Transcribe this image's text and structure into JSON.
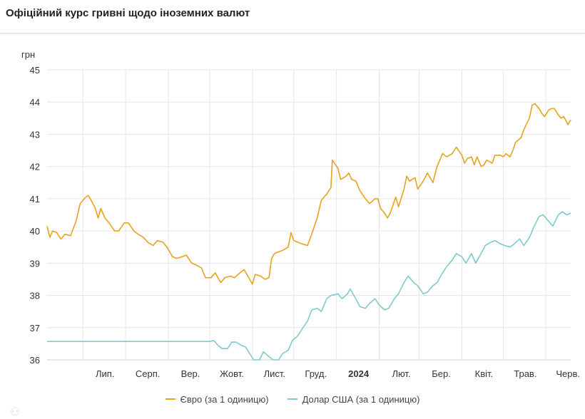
{
  "header": {
    "title": "Офіційний курс гривні щодо іноземних валют"
  },
  "colors": {
    "euro": "#E8A21E",
    "usd": "#7ECACB",
    "grid": "#E6E6E6",
    "axis": "#CCCCCC",
    "text": "#333333"
  },
  "chart_data": {
    "type": "line",
    "title": "Офіційний курс гривні щодо іноземних валют",
    "xlabel": "",
    "ylabel": "грн",
    "ylim": [
      36,
      45
    ],
    "yticks": [
      "36",
      "37",
      "38",
      "39",
      "40",
      "41",
      "42",
      "43",
      "44",
      "45"
    ],
    "xlim": [
      "2023-06-05",
      "2024-06-19"
    ],
    "xticks": [
      {
        "date": "2023-07-01",
        "label": "Лип."
      },
      {
        "date": "2023-08-01",
        "label": "Серп."
      },
      {
        "date": "2023-09-01",
        "label": "Вер."
      },
      {
        "date": "2023-10-01",
        "label": "Жовт."
      },
      {
        "date": "2023-11-01",
        "label": "Лист."
      },
      {
        "date": "2023-12-01",
        "label": "Груд."
      },
      {
        "date": "2024-01-01",
        "label": "2024",
        "bold": true
      },
      {
        "date": "2024-02-01",
        "label": "Лют."
      },
      {
        "date": "2024-03-01",
        "label": "Бер."
      },
      {
        "date": "2024-04-01",
        "label": "Квіт."
      },
      {
        "date": "2024-05-01",
        "label": "Трав."
      },
      {
        "date": "2024-06-01",
        "label": "Черв."
      }
    ],
    "grid": true,
    "legend_position": "bottom-center",
    "series": [
      {
        "name": "Євро (за 1 одиницю)",
        "color": "#E8A21E",
        "points": [
          [
            "2023-06-05",
            40.15
          ],
          [
            "2023-06-07",
            39.8
          ],
          [
            "2023-06-09",
            40.0
          ],
          [
            "2023-06-12",
            39.95
          ],
          [
            "2023-06-15",
            39.75
          ],
          [
            "2023-06-18",
            39.9
          ],
          [
            "2023-06-22",
            39.85
          ],
          [
            "2023-06-26",
            40.3
          ],
          [
            "2023-06-29",
            40.85
          ],
          [
            "2023-07-03",
            41.05
          ],
          [
            "2023-07-05",
            41.1
          ],
          [
            "2023-07-07",
            40.95
          ],
          [
            "2023-07-10",
            40.7
          ],
          [
            "2023-07-12",
            40.4
          ],
          [
            "2023-07-14",
            40.7
          ],
          [
            "2023-07-17",
            40.4
          ],
          [
            "2023-07-20",
            40.25
          ],
          [
            "2023-07-24",
            40.0
          ],
          [
            "2023-07-27",
            40.0
          ],
          [
            "2023-07-31",
            40.25
          ],
          [
            "2023-08-03",
            40.25
          ],
          [
            "2023-08-07",
            40.0
          ],
          [
            "2023-08-10",
            39.9
          ],
          [
            "2023-08-14",
            39.8
          ],
          [
            "2023-08-17",
            39.65
          ],
          [
            "2023-08-21",
            39.55
          ],
          [
            "2023-08-24",
            39.7
          ],
          [
            "2023-08-28",
            39.65
          ],
          [
            "2023-08-31",
            39.5
          ],
          [
            "2023-09-04",
            39.2
          ],
          [
            "2023-09-07",
            39.15
          ],
          [
            "2023-09-11",
            39.2
          ],
          [
            "2023-09-14",
            39.25
          ],
          [
            "2023-09-18",
            39.0
          ],
          [
            "2023-09-21",
            38.95
          ],
          [
            "2023-09-25",
            38.85
          ],
          [
            "2023-09-28",
            38.55
          ],
          [
            "2023-10-02",
            38.55
          ],
          [
            "2023-10-05",
            38.7
          ],
          [
            "2023-10-09",
            38.4
          ],
          [
            "2023-10-12",
            38.55
          ],
          [
            "2023-10-16",
            38.6
          ],
          [
            "2023-10-19",
            38.55
          ],
          [
            "2023-10-23",
            38.7
          ],
          [
            "2023-10-26",
            38.8
          ],
          [
            "2023-10-30",
            38.5
          ],
          [
            "2023-11-01",
            38.35
          ],
          [
            "2023-11-03",
            38.65
          ],
          [
            "2023-11-07",
            38.6
          ],
          [
            "2023-11-10",
            38.5
          ],
          [
            "2023-11-13",
            38.55
          ],
          [
            "2023-11-15",
            39.15
          ],
          [
            "2023-11-17",
            39.3
          ],
          [
            "2023-11-20",
            39.35
          ],
          [
            "2023-11-23",
            39.4
          ],
          [
            "2023-11-27",
            39.5
          ],
          [
            "2023-11-29",
            39.95
          ],
          [
            "2023-12-01",
            39.7
          ],
          [
            "2023-12-04",
            39.65
          ],
          [
            "2023-12-07",
            39.6
          ],
          [
            "2023-12-11",
            39.55
          ],
          [
            "2023-12-14",
            39.9
          ],
          [
            "2023-12-18",
            40.4
          ],
          [
            "2023-12-21",
            40.95
          ],
          [
            "2023-12-25",
            41.15
          ],
          [
            "2023-12-28",
            41.35
          ],
          [
            "2023-12-29",
            42.2
          ],
          [
            "2024-01-02",
            41.95
          ],
          [
            "2024-01-04",
            41.6
          ],
          [
            "2024-01-08",
            41.7
          ],
          [
            "2024-01-10",
            41.8
          ],
          [
            "2024-01-12",
            41.6
          ],
          [
            "2024-01-15",
            41.55
          ],
          [
            "2024-01-18",
            41.25
          ],
          [
            "2024-01-22",
            41.0
          ],
          [
            "2024-01-25",
            40.85
          ],
          [
            "2024-01-29",
            41.0
          ],
          [
            "2024-01-31",
            41.0
          ],
          [
            "2024-02-02",
            40.7
          ],
          [
            "2024-02-05",
            40.55
          ],
          [
            "2024-02-07",
            40.4
          ],
          [
            "2024-02-09",
            40.55
          ],
          [
            "2024-02-13",
            41.05
          ],
          [
            "2024-02-15",
            40.75
          ],
          [
            "2024-02-19",
            41.3
          ],
          [
            "2024-02-21",
            41.7
          ],
          [
            "2024-02-23",
            41.55
          ],
          [
            "2024-02-27",
            41.65
          ],
          [
            "2024-02-29",
            41.3
          ],
          [
            "2024-03-04",
            41.55
          ],
          [
            "2024-03-07",
            41.8
          ],
          [
            "2024-03-11",
            41.5
          ],
          [
            "2024-03-14",
            42.0
          ],
          [
            "2024-03-18",
            42.4
          ],
          [
            "2024-03-21",
            42.3
          ],
          [
            "2024-03-25",
            42.4
          ],
          [
            "2024-03-28",
            42.6
          ],
          [
            "2024-04-01",
            42.35
          ],
          [
            "2024-04-03",
            42.1
          ],
          [
            "2024-04-05",
            42.25
          ],
          [
            "2024-04-08",
            42.3
          ],
          [
            "2024-04-10",
            42.05
          ],
          [
            "2024-04-12",
            42.3
          ],
          [
            "2024-04-15",
            42.0
          ],
          [
            "2024-04-17",
            42.05
          ],
          [
            "2024-04-19",
            42.2
          ],
          [
            "2024-04-23",
            42.1
          ],
          [
            "2024-04-25",
            42.35
          ],
          [
            "2024-04-29",
            42.35
          ],
          [
            "2024-05-01",
            42.3
          ],
          [
            "2024-05-03",
            42.4
          ],
          [
            "2024-05-06",
            42.3
          ],
          [
            "2024-05-08",
            42.5
          ],
          [
            "2024-05-10",
            42.75
          ],
          [
            "2024-05-14",
            42.9
          ],
          [
            "2024-05-16",
            43.15
          ],
          [
            "2024-05-20",
            43.5
          ],
          [
            "2024-05-22",
            43.9
          ],
          [
            "2024-05-24",
            43.95
          ],
          [
            "2024-05-27",
            43.8
          ],
          [
            "2024-05-29",
            43.65
          ],
          [
            "2024-05-31",
            43.55
          ],
          [
            "2024-06-03",
            43.75
          ],
          [
            "2024-06-05",
            43.8
          ],
          [
            "2024-06-07",
            43.8
          ],
          [
            "2024-06-10",
            43.6
          ],
          [
            "2024-06-12",
            43.5
          ],
          [
            "2024-06-14",
            43.55
          ],
          [
            "2024-06-17",
            43.3
          ],
          [
            "2024-06-19",
            43.45
          ]
        ]
      },
      {
        "name": "Долар США (за 1 одиницю)",
        "color": "#7ECACB",
        "points": [
          [
            "2023-06-05",
            36.57
          ],
          [
            "2023-10-01",
            36.57
          ],
          [
            "2023-10-04",
            36.6
          ],
          [
            "2023-10-07",
            36.45
          ],
          [
            "2023-10-10",
            36.35
          ],
          [
            "2023-10-14",
            36.35
          ],
          [
            "2023-10-17",
            36.55
          ],
          [
            "2023-10-20",
            36.55
          ],
          [
            "2023-10-24",
            36.45
          ],
          [
            "2023-10-27",
            36.4
          ],
          [
            "2023-10-30",
            36.2
          ],
          [
            "2023-11-02",
            36.0
          ],
          [
            "2023-11-06",
            36.0
          ],
          [
            "2023-11-09",
            36.25
          ],
          [
            "2023-11-13",
            36.1
          ],
          [
            "2023-11-16",
            36.0
          ],
          [
            "2023-11-20",
            36.0
          ],
          [
            "2023-11-23",
            36.2
          ],
          [
            "2023-11-27",
            36.3
          ],
          [
            "2023-11-30",
            36.6
          ],
          [
            "2023-12-04",
            36.75
          ],
          [
            "2023-12-07",
            36.95
          ],
          [
            "2023-12-11",
            37.2
          ],
          [
            "2023-12-14",
            37.55
          ],
          [
            "2023-12-18",
            37.6
          ],
          [
            "2023-12-21",
            37.5
          ],
          [
            "2023-12-25",
            37.9
          ],
          [
            "2023-12-28",
            38.0
          ],
          [
            "2024-01-02",
            38.05
          ],
          [
            "2024-01-05",
            37.9
          ],
          [
            "2024-01-09",
            38.05
          ],
          [
            "2024-01-11",
            38.2
          ],
          [
            "2024-01-15",
            37.9
          ],
          [
            "2024-01-18",
            37.65
          ],
          [
            "2024-01-22",
            37.6
          ],
          [
            "2024-01-25",
            37.75
          ],
          [
            "2024-01-29",
            37.9
          ],
          [
            "2024-02-01",
            37.7
          ],
          [
            "2024-02-05",
            37.55
          ],
          [
            "2024-02-08",
            37.6
          ],
          [
            "2024-02-12",
            37.9
          ],
          [
            "2024-02-15",
            38.05
          ],
          [
            "2024-02-19",
            38.4
          ],
          [
            "2024-02-22",
            38.6
          ],
          [
            "2024-02-26",
            38.4
          ],
          [
            "2024-02-29",
            38.3
          ],
          [
            "2024-03-04",
            38.05
          ],
          [
            "2024-03-07",
            38.1
          ],
          [
            "2024-03-11",
            38.3
          ],
          [
            "2024-03-14",
            38.4
          ],
          [
            "2024-03-18",
            38.7
          ],
          [
            "2024-03-21",
            38.9
          ],
          [
            "2024-03-25",
            39.1
          ],
          [
            "2024-03-28",
            39.3
          ],
          [
            "2024-04-01",
            39.2
          ],
          [
            "2024-04-04",
            39.0
          ],
          [
            "2024-04-08",
            39.3
          ],
          [
            "2024-04-11",
            39.0
          ],
          [
            "2024-04-15",
            39.3
          ],
          [
            "2024-04-18",
            39.55
          ],
          [
            "2024-04-22",
            39.65
          ],
          [
            "2024-04-25",
            39.7
          ],
          [
            "2024-04-29",
            39.6
          ],
          [
            "2024-05-02",
            39.55
          ],
          [
            "2024-05-06",
            39.5
          ],
          [
            "2024-05-09",
            39.6
          ],
          [
            "2024-05-13",
            39.75
          ],
          [
            "2024-05-16",
            39.55
          ],
          [
            "2024-05-20",
            39.8
          ],
          [
            "2024-05-23",
            40.1
          ],
          [
            "2024-05-27",
            40.45
          ],
          [
            "2024-05-30",
            40.5
          ],
          [
            "2024-06-03",
            40.3
          ],
          [
            "2024-06-06",
            40.15
          ],
          [
            "2024-06-10",
            40.5
          ],
          [
            "2024-06-13",
            40.6
          ],
          [
            "2024-06-16",
            40.5
          ],
          [
            "2024-06-19",
            40.55
          ]
        ]
      }
    ]
  }
}
